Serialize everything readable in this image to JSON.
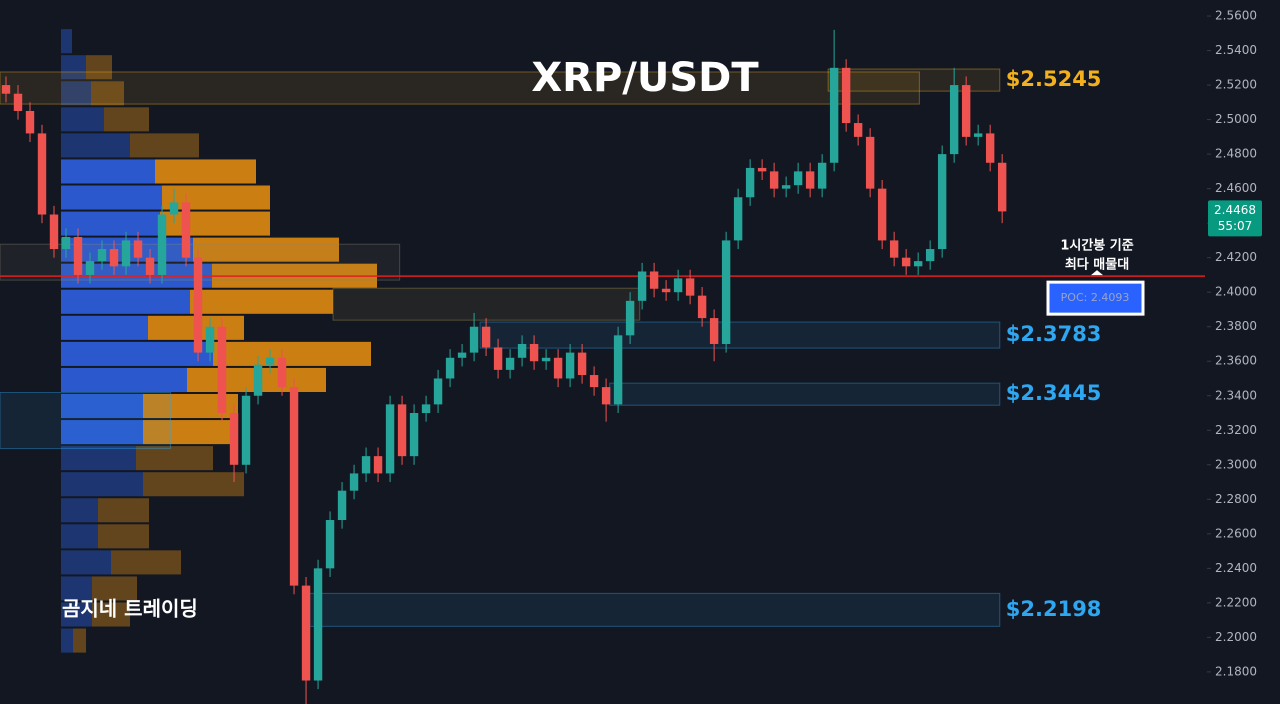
{
  "chart_data": {
    "type": "candlestick",
    "title": "XRP/USDT",
    "watermark": "곰지네 트레이딩",
    "ylim": [
      2.1614,
      2.5693
    ],
    "xlim": [
      -0.5,
      99.9
    ],
    "yticks": [
      {
        "value": 2.56,
        "label": "2.5600"
      },
      {
        "value": 2.54,
        "label": "2.5400"
      },
      {
        "value": 2.52,
        "label": "2.5200"
      },
      {
        "value": 2.5,
        "label": "2.5000"
      },
      {
        "value": 2.48,
        "label": "2.4800"
      },
      {
        "value": 2.46,
        "label": "2.4600"
      },
      {
        "value": 2.44,
        "label": "2.4400"
      },
      {
        "value": 2.42,
        "label": "2.4200"
      },
      {
        "value": 2.4,
        "label": "2.4000"
      },
      {
        "value": 2.38,
        "label": "2.3800"
      },
      {
        "value": 2.36,
        "label": "2.3600"
      },
      {
        "value": 2.34,
        "label": "2.3400"
      },
      {
        "value": 2.32,
        "label": "2.3200"
      },
      {
        "value": 2.3,
        "label": "2.3000"
      },
      {
        "value": 2.28,
        "label": "2.2800"
      },
      {
        "value": 2.26,
        "label": "2.2600"
      },
      {
        "value": 2.24,
        "label": "2.2400"
      },
      {
        "value": 2.22,
        "label": "2.2200"
      },
      {
        "value": 2.2,
        "label": "2.2000"
      },
      {
        "value": 2.18,
        "label": "2.1800"
      }
    ],
    "up_color": "#26a69a",
    "down_color": "#ef5350",
    "open": [
      2.52,
      2.515,
      2.505,
      2.492,
      2.445,
      2.425,
      2.432,
      2.41,
      2.418,
      2.425,
      2.415,
      2.43,
      2.42,
      2.41,
      2.445,
      2.452,
      2.42,
      2.365,
      2.38,
      2.33,
      2.3,
      2.34,
      2.358,
      2.362,
      2.345,
      2.23,
      2.175,
      2.24,
      2.268,
      2.285,
      2.295,
      2.305,
      2.295,
      2.335,
      2.305,
      2.33,
      2.335,
      2.35,
      2.362,
      2.365,
      2.38,
      2.368,
      2.355,
      2.362,
      2.37,
      2.36,
      2.362,
      2.35,
      2.365,
      2.352,
      2.345,
      2.335,
      2.375,
      2.395,
      2.412,
      2.402,
      2.4,
      2.408,
      2.398,
      2.385,
      2.37,
      2.43,
      2.455,
      2.472,
      2.47,
      2.46,
      2.462,
      2.47,
      2.46,
      2.475,
      2.53,
      2.498,
      2.49,
      2.46,
      2.43,
      2.42,
      2.415,
      2.418,
      2.425,
      2.48,
      2.52,
      2.49,
      2.492,
      2.475
    ],
    "high": [
      2.525,
      2.52,
      2.51,
      2.497,
      2.45,
      2.437,
      2.437,
      2.423,
      2.43,
      2.43,
      2.435,
      2.435,
      2.425,
      2.45,
      2.46,
      2.457,
      2.425,
      2.385,
      2.385,
      2.335,
      2.345,
      2.363,
      2.367,
      2.367,
      2.35,
      2.235,
      2.245,
      2.273,
      2.29,
      2.3,
      2.31,
      2.31,
      2.34,
      2.34,
      2.335,
      2.34,
      2.355,
      2.367,
      2.37,
      2.388,
      2.385,
      2.373,
      2.367,
      2.375,
      2.375,
      2.367,
      2.367,
      2.37,
      2.37,
      2.357,
      2.35,
      2.38,
      2.4,
      2.417,
      2.417,
      2.407,
      2.413,
      2.413,
      2.403,
      2.39,
      2.435,
      2.46,
      2.477,
      2.477,
      2.475,
      2.467,
      2.475,
      2.475,
      2.48,
      2.552,
      2.535,
      2.503,
      2.495,
      2.465,
      2.435,
      2.425,
      2.423,
      2.43,
      2.485,
      2.53,
      2.525,
      2.497,
      2.497,
      2.48
    ],
    "low": [
      2.51,
      2.5,
      2.487,
      2.44,
      2.42,
      2.42,
      2.405,
      2.405,
      2.413,
      2.41,
      2.41,
      2.415,
      2.405,
      2.405,
      2.44,
      2.415,
      2.36,
      2.36,
      2.325,
      2.29,
      2.295,
      2.335,
      2.353,
      2.34,
      2.225,
      2.16,
      2.17,
      2.235,
      2.263,
      2.28,
      2.29,
      2.29,
      2.29,
      2.3,
      2.3,
      2.325,
      2.33,
      2.345,
      2.357,
      2.36,
      2.363,
      2.35,
      2.35,
      2.357,
      2.355,
      2.355,
      2.345,
      2.345,
      2.347,
      2.34,
      2.325,
      2.33,
      2.37,
      2.39,
      2.397,
      2.395,
      2.395,
      2.393,
      2.38,
      2.36,
      2.365,
      2.425,
      2.45,
      2.465,
      2.455,
      2.455,
      2.457,
      2.455,
      2.455,
      2.47,
      2.493,
      2.485,
      2.455,
      2.425,
      2.415,
      2.41,
      2.41,
      2.413,
      2.42,
      2.475,
      2.485,
      2.485,
      2.47,
      2.44
    ],
    "close": [
      2.515,
      2.505,
      2.492,
      2.445,
      2.425,
      2.432,
      2.41,
      2.418,
      2.425,
      2.415,
      2.43,
      2.42,
      2.41,
      2.445,
      2.452,
      2.42,
      2.365,
      2.38,
      2.33,
      2.3,
      2.34,
      2.358,
      2.362,
      2.345,
      2.23,
      2.175,
      2.24,
      2.268,
      2.285,
      2.295,
      2.305,
      2.295,
      2.335,
      2.305,
      2.33,
      2.335,
      2.35,
      2.362,
      2.365,
      2.38,
      2.368,
      2.355,
      2.362,
      2.37,
      2.36,
      2.362,
      2.35,
      2.365,
      2.352,
      2.345,
      2.335,
      2.375,
      2.395,
      2.412,
      2.402,
      2.4,
      2.408,
      2.398,
      2.385,
      2.37,
      2.43,
      2.455,
      2.472,
      2.47,
      2.46,
      2.462,
      2.47,
      2.46,
      2.475,
      2.53,
      2.498,
      2.49,
      2.46,
      2.43,
      2.42,
      2.415,
      2.418,
      2.425,
      2.48,
      2.52,
      2.49,
      2.492,
      2.475,
      2.4468
    ],
    "volume_profile": {
      "bins": [
        2.553,
        2.5379,
        2.5228,
        2.5077,
        2.4926,
        2.4775,
        2.4624,
        2.4473,
        2.4322,
        2.4171,
        2.402,
        2.3869,
        2.3718,
        2.3567,
        2.3416,
        2.3265,
        2.3114,
        2.2963,
        2.2812,
        2.2661,
        2.251,
        2.2359,
        2.2208,
        2.2057,
        2.1906
      ],
      "buy": [
        11,
        25,
        30,
        43,
        69,
        94,
        101,
        99,
        132,
        151,
        129,
        87,
        152,
        126,
        82,
        82,
        75,
        82,
        37,
        37,
        50,
        31,
        31,
        12
      ],
      "sell": [
        0,
        26,
        33,
        45,
        69,
        101,
        108,
        110,
        146,
        165,
        143,
        96,
        158,
        139,
        95,
        87,
        77,
        101,
        51,
        51,
        70,
        45,
        38,
        13
      ],
      "xlim": [
        0,
        1000
      ],
      "value_area": [
        2.3114,
        2.4775
      ],
      "buy_color": "#2f5fe0",
      "sell_color": "#e08a10",
      "buy_dim_color": "#1f3a7a",
      "sell_dim_color": "#6b4a1c"
    },
    "zones": [
      {
        "label": "$2.5245",
        "top": 2.5293,
        "bottom": 2.5165,
        "x_range": [
          68.5,
          82.8
        ],
        "color": "#f2b01e"
      },
      {
        "top": 2.5276,
        "bottom": 2.509,
        "x_range": [
          -0.5,
          76.1
        ],
        "color": "#f2b01e"
      },
      {
        "top": 2.4278,
        "bottom": 2.407,
        "x_range": [
          -0.5,
          32.8
        ],
        "color": "#8a8a70"
      },
      {
        "top": 2.4023,
        "bottom": 2.3838,
        "x_range": [
          27.25,
          52.8
        ],
        "color": "#b09a50"
      },
      {
        "label": "$2.3783",
        "top": 2.3827,
        "bottom": 2.3676,
        "x_range": [
          39.5,
          82.8
        ],
        "color": "#2ea6f0"
      },
      {
        "label": "$2.3445",
        "top": 2.3473,
        "bottom": 2.3345,
        "x_range": [
          50.3,
          82.8
        ],
        "color": "#2ea6f0"
      },
      {
        "label": "$2.2198",
        "top": 2.2255,
        "bottom": 2.2064,
        "x_range": [
          25.3,
          82.8
        ],
        "color": "#2ea6f0"
      },
      {
        "top": 2.3419,
        "bottom": 2.3094,
        "x_range": [
          -0.5,
          13.7
        ],
        "color": "#2ea6f0"
      }
    ],
    "poc": {
      "value": 2.4093,
      "label": "POC: 2.4093",
      "note": [
        "1시간봉 기준",
        "최다 매물대"
      ],
      "color": "#e0201f"
    },
    "last_price": {
      "value": 2.4468,
      "countdown": "55:07",
      "color": "#089981"
    }
  }
}
